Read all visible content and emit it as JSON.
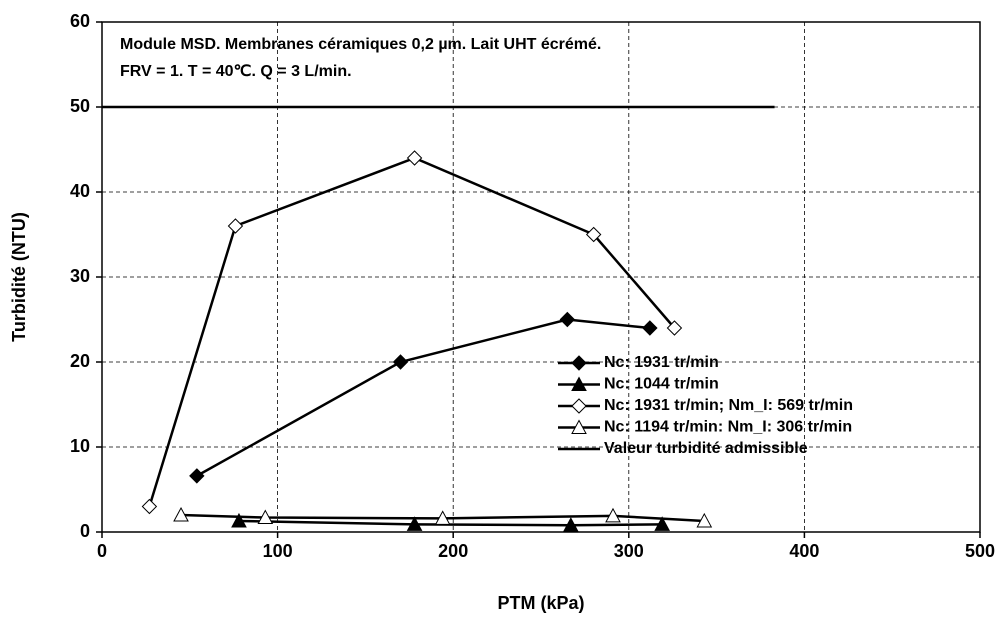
{
  "chart_data": {
    "type": "line",
    "annotation": [
      "Module MSD. Membranes céramiques 0,2 µm. Lait UHT écrémé.",
      "FRV = 1. T = 40℃. Q = 3 L/min."
    ],
    "xlabel": "PTM (kPa)",
    "ylabel": "Turbidité (NTU)",
    "xlim": [
      0,
      500
    ],
    "xticks": [
      0,
      100,
      200,
      300,
      400,
      500
    ],
    "ylim": [
      0,
      60
    ],
    "yticks": [
      0,
      10,
      20,
      30,
      40,
      50,
      60
    ],
    "grid": true,
    "legend": "right",
    "series": [
      {
        "name": "Nc: 1931 tr/min",
        "color": "#000000",
        "marker": "diamond-filled",
        "x": [
          54,
          170,
          265,
          312
        ],
        "values": [
          6.6,
          20,
          25,
          24
        ]
      },
      {
        "name": "Nc: 1044 tr/min",
        "color": "#000000",
        "marker": "triangle-filled",
        "x": [
          78,
          178,
          267,
          319
        ],
        "values": [
          1.3,
          0.9,
          0.8,
          0.9
        ]
      },
      {
        "name": "Nc: 1931 tr/min; Nm_I: 569 tr/min",
        "color": "#000000",
        "marker": "diamond-open",
        "x": [
          27,
          76,
          178,
          280,
          326
        ],
        "values": [
          3,
          36,
          44,
          35,
          24
        ]
      },
      {
        "name": "Nc: 1194 tr/min: Nm_I: 306 tr/min",
        "color": "#000000",
        "marker": "triangle-open",
        "x": [
          45,
          93,
          194,
          291,
          343
        ],
        "values": [
          2,
          1.7,
          1.6,
          1.9,
          1.3
        ]
      },
      {
        "name": "Valeur turbidité admissible",
        "color": "#000000",
        "marker": "none",
        "x": [
          0,
          383
        ],
        "values": [
          50,
          50
        ]
      }
    ]
  }
}
